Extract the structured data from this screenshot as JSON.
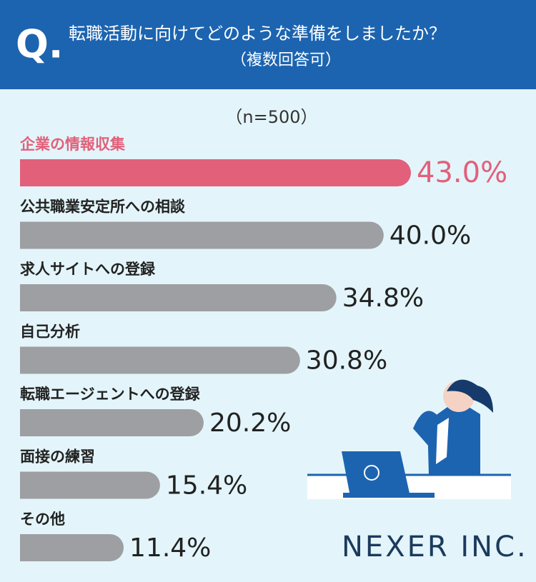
{
  "chart_data": {
    "type": "hbar",
    "badge": "Q.",
    "title": "転職活動に向けてどのような準備をしましたか？",
    "subtitle": "（複数回答可）",
    "note": "（n=500）",
    "categories": [
      "企業の情報収集",
      "公共職業安定所への相談",
      "求人サイトへの登録",
      "自己分析",
      "転職エージェントへの登録",
      "面接の練習",
      "その他"
    ],
    "values": [
      43.0,
      40.0,
      34.8,
      30.8,
      20.2,
      15.4,
      11.4
    ],
    "value_labels": [
      "43.0%",
      "40.0%",
      "34.8%",
      "30.8%",
      "20.2%",
      "15.4%",
      "11.4%"
    ],
    "colors": [
      "#e2607a",
      "#9e9fa3",
      "#9e9fa3",
      "#9e9fa3",
      "#9e9fa3",
      "#9e9fa3",
      "#9e9fa3"
    ],
    "label_colors": [
      "#e2607a",
      "#222222",
      "#222222",
      "#222222",
      "#222222",
      "#222222",
      "#222222"
    ],
    "logo": "NEXER INC."
  }
}
